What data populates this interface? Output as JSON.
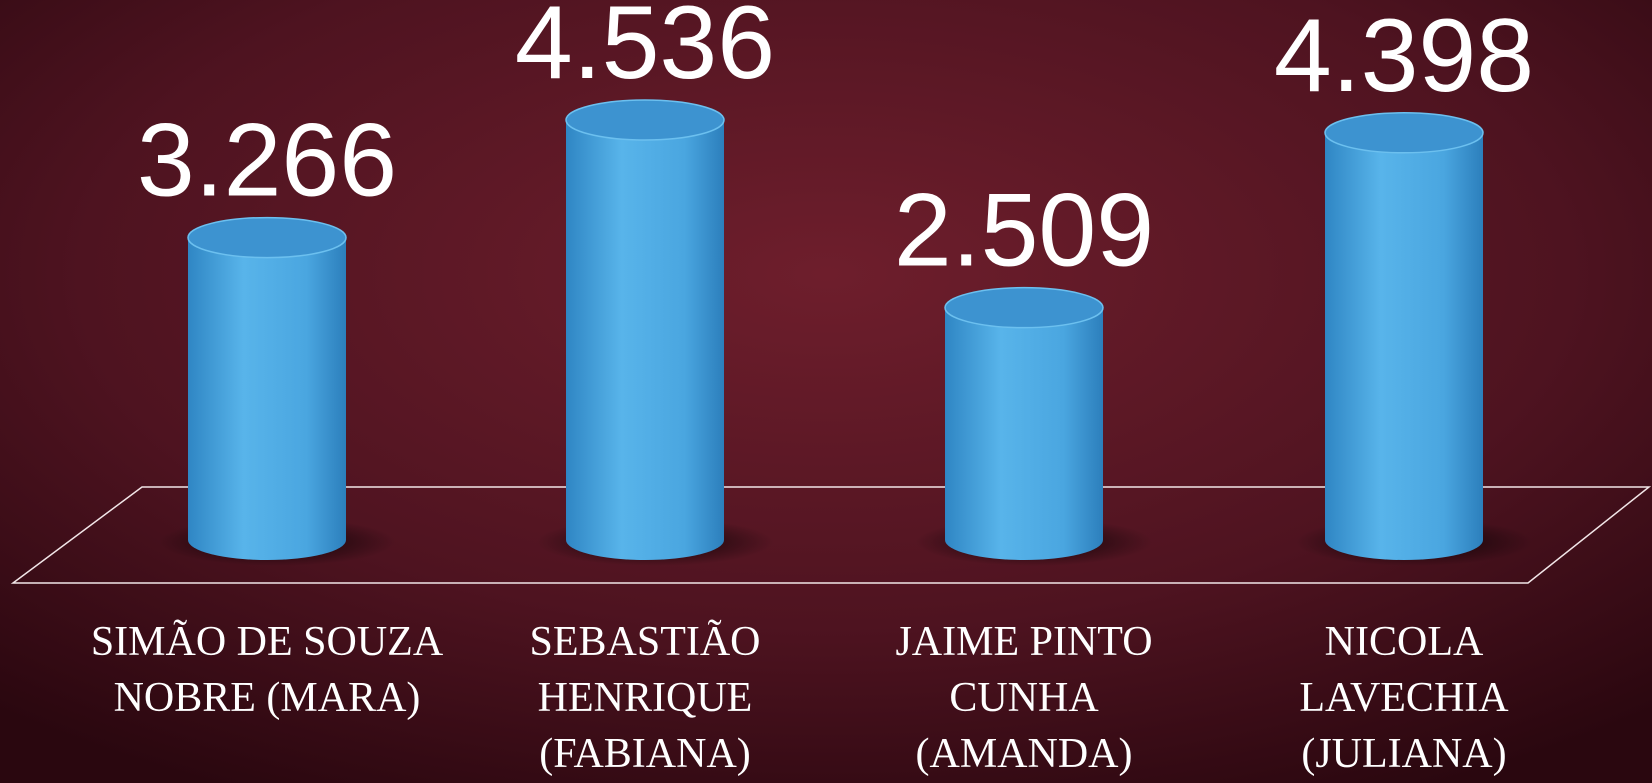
{
  "chart_data": {
    "type": "cylinder_bar",
    "categories": [
      "SIMÃO DE SOUZA NOBRE (MARA)",
      "SEBASTIÃO HENRIQUE (FABIANA)",
      "JAIME PINTO CUNHA (AMANDA)",
      "NICOLA LAVECHIA (JULIANA)"
    ],
    "values": [
      3266,
      4536,
      2509,
      4398
    ],
    "value_labels": [
      "3.266",
      "4.536",
      "2.509",
      "4.398"
    ],
    "color": "#4aa6e0"
  }
}
